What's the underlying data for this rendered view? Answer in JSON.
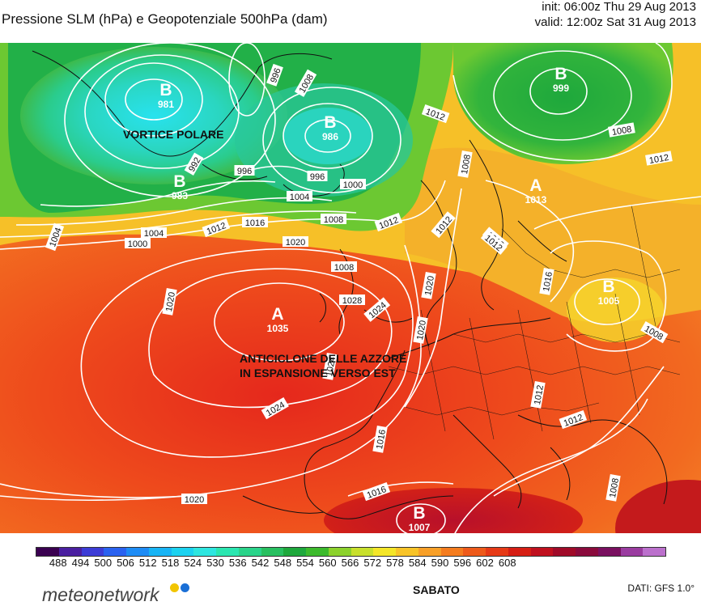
{
  "header": {
    "title": "Pressione SLM (hPa) e Geopotenziale 500hPa (dam)",
    "init": "init: 06:00z Thu 29 Aug 2013",
    "valid": "valid: 12:00z Sat 31 Aug 2013"
  },
  "map": {
    "centers": [
      {
        "letter": "B",
        "value": "981"
      },
      {
        "letter": "B",
        "value": "986"
      },
      {
        "letter": "B",
        "value": "983"
      },
      {
        "letter": "B",
        "value": "999"
      },
      {
        "letter": "A",
        "value": "1035"
      },
      {
        "letter": "A",
        "value": "1013"
      },
      {
        "letter": "B",
        "value": "1005"
      },
      {
        "letter": "B",
        "value": "1007"
      }
    ],
    "isobar_labels": [
      "996",
      "1008",
      "1012",
      "1008",
      "1012",
      "992",
      "996",
      "996",
      "1000",
      "1004",
      "1008",
      "1012",
      "1016",
      "1020",
      "1000",
      "1004",
      "1012",
      "1008",
      "1012",
      "1004",
      "1008",
      "1012",
      "1016",
      "1020",
      "1024",
      "1024",
      "1028",
      "1020",
      "1024",
      "1020",
      "1016",
      "1016",
      "1008",
      "1012",
      "1008",
      "1012",
      "1020",
      "1012"
    ],
    "annotations": {
      "polar_vortex": "VORTICE POLARE",
      "azores_line1": "ANTICICLONE DELLE AZZORE",
      "azores_line2": "IN ESPANSIONE VERSO EST"
    }
  },
  "colorbar": {
    "colors": [
      "#3a0050",
      "#4a1fa0",
      "#3c3cd6",
      "#2a62f0",
      "#1e8cf5",
      "#18b4f5",
      "#1cd2f0",
      "#2ee6e0",
      "#2ae6b0",
      "#2ad48a",
      "#28c060",
      "#1ea83c",
      "#3cba2c",
      "#8cd22c",
      "#c8e02c",
      "#f4e628",
      "#f8c428",
      "#f8a028",
      "#f47c1e",
      "#ee5a1a",
      "#e63a16",
      "#d61e14",
      "#c0101e",
      "#a00a28",
      "#8a0a3c",
      "#7a1060",
      "#9a3ca0",
      "#bb70cc"
    ],
    "ticks": [
      "488",
      "494",
      "500",
      "506",
      "512",
      "518",
      "524",
      "530",
      "536",
      "542",
      "548",
      "554",
      "560",
      "566",
      "572",
      "578",
      "584",
      "590",
      "596",
      "602",
      "608"
    ]
  },
  "footer": {
    "brand": "meteonetwork",
    "dot_colors": [
      "#f2c500",
      "#1a6fd6"
    ],
    "day": "SABATO",
    "source": "DATI:  GFS  1.0°"
  }
}
